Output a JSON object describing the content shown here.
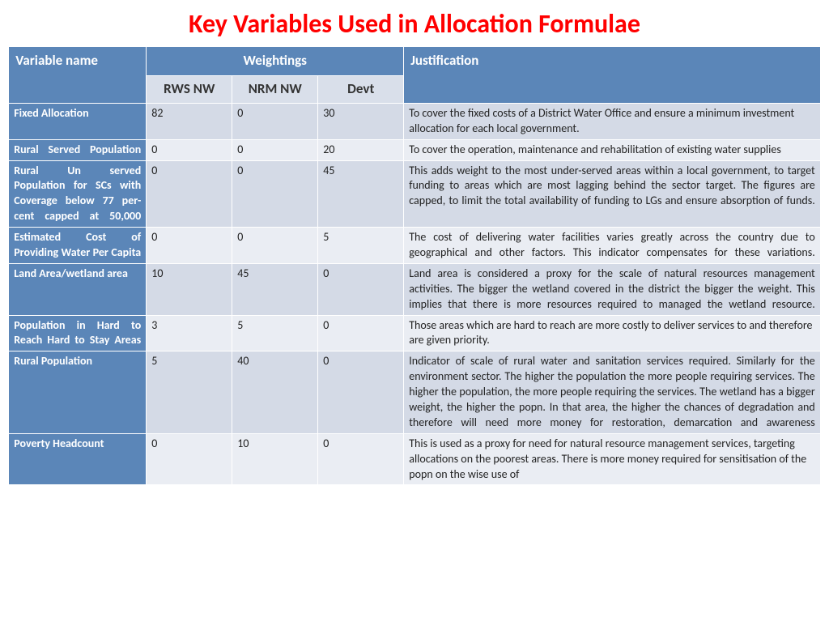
{
  "title": {
    "text": "Key Variables Used in Allocation Formulae",
    "color": "#ff0000",
    "fontsize": 32
  },
  "colors": {
    "header_bg": "#5b86b8",
    "header_fg": "#ffffff",
    "subheader_bg": "#d9dfea",
    "row_light": "#eaedf3",
    "row_dark": "#d4dae6",
    "border": "#ffffff"
  },
  "table": {
    "headers": {
      "variable": "Variable name",
      "weightings": "Weightings",
      "justification": "Justification",
      "sub": {
        "rws": "RWS NW",
        "nrm": "NRM NW",
        "devt": "Devt"
      }
    },
    "rows": [
      {
        "variable": "Fixed Allocation",
        "rws": "82",
        "nrm": "0",
        "devt": "30",
        "justification": "To cover the fixed costs of a District Water Office and ensure a minimum investment allocation for each local government.",
        "var_align": "simple"
      },
      {
        "variable": "Rural Served Population",
        "rws": "0",
        "nrm": "0",
        "devt": "20",
        "justification": "To cover the operation, maintenance and rehabilitation of existing water supplies",
        "var_align": "justify"
      },
      {
        "variable": "Rural Un served Population for SCs with Coverage below 77 per-cent capped at 50,000",
        "rws": "0",
        "nrm": "0",
        "devt": "45",
        "justification": "This adds weight to the most under-served areas within a local government, to target funding to areas which are most lagging behind the sector target.  The figures are capped, to limit the total availability of funding to LGs and ensure absorption of funds.",
        "var_align": "justify",
        "just_align": "justify"
      },
      {
        "variable": "Estimated Cost of Providing Water Per Capita",
        "rws": "0",
        "nrm": "0",
        "devt": "5",
        "justification": "The cost of delivering water facilities varies greatly across the country due to geographical and other factors. This indicator compensates for these variations.",
        "var_align": "justify",
        "just_align": "justify"
      },
      {
        "variable": "Land Area/wetland area",
        "rws": "10",
        "nrm": "45",
        "devt": "0",
        "justification": "Land area is considered a proxy for the scale of natural resources management activities. The bigger the wetland covered in the district the bigger the weight. This implies that there is more resources required to managed the wetland resource.",
        "var_align": "simple",
        "just_align": "justify"
      },
      {
        "variable": "Population in Hard to Reach Hard to Stay Areas",
        "rws": "3",
        "nrm": "5",
        "devt": "0",
        "justification": "Those areas which are hard to reach are more costly to deliver services to and therefore are given priority.",
        "var_align": "justify"
      },
      {
        "variable": "Rural Population",
        "rws": "5",
        "nrm": "40",
        "devt": "0",
        "justification": "Indicator of scale of rural water and sanitation services required. Similarly for the environment sector.  The higher the population the more people requiring services. The higher the population, the more people requiring the services. The wetland has a bigger weight, the higher the popn. In that area, the higher the chances of degradation and therefore will need more money for restoration, demarcation and awareness",
        "var_align": "simple",
        "just_align": "justify"
      },
      {
        "variable": "Poverty Headcount",
        "rws": "0",
        "nrm": "10",
        "devt": "0",
        "justification": "This is used as a proxy for need for natural resource management services, targeting allocations on the poorest areas.  There is more money required for sensitisation of the popn on the wise use of",
        "var_align": "simple"
      }
    ]
  }
}
